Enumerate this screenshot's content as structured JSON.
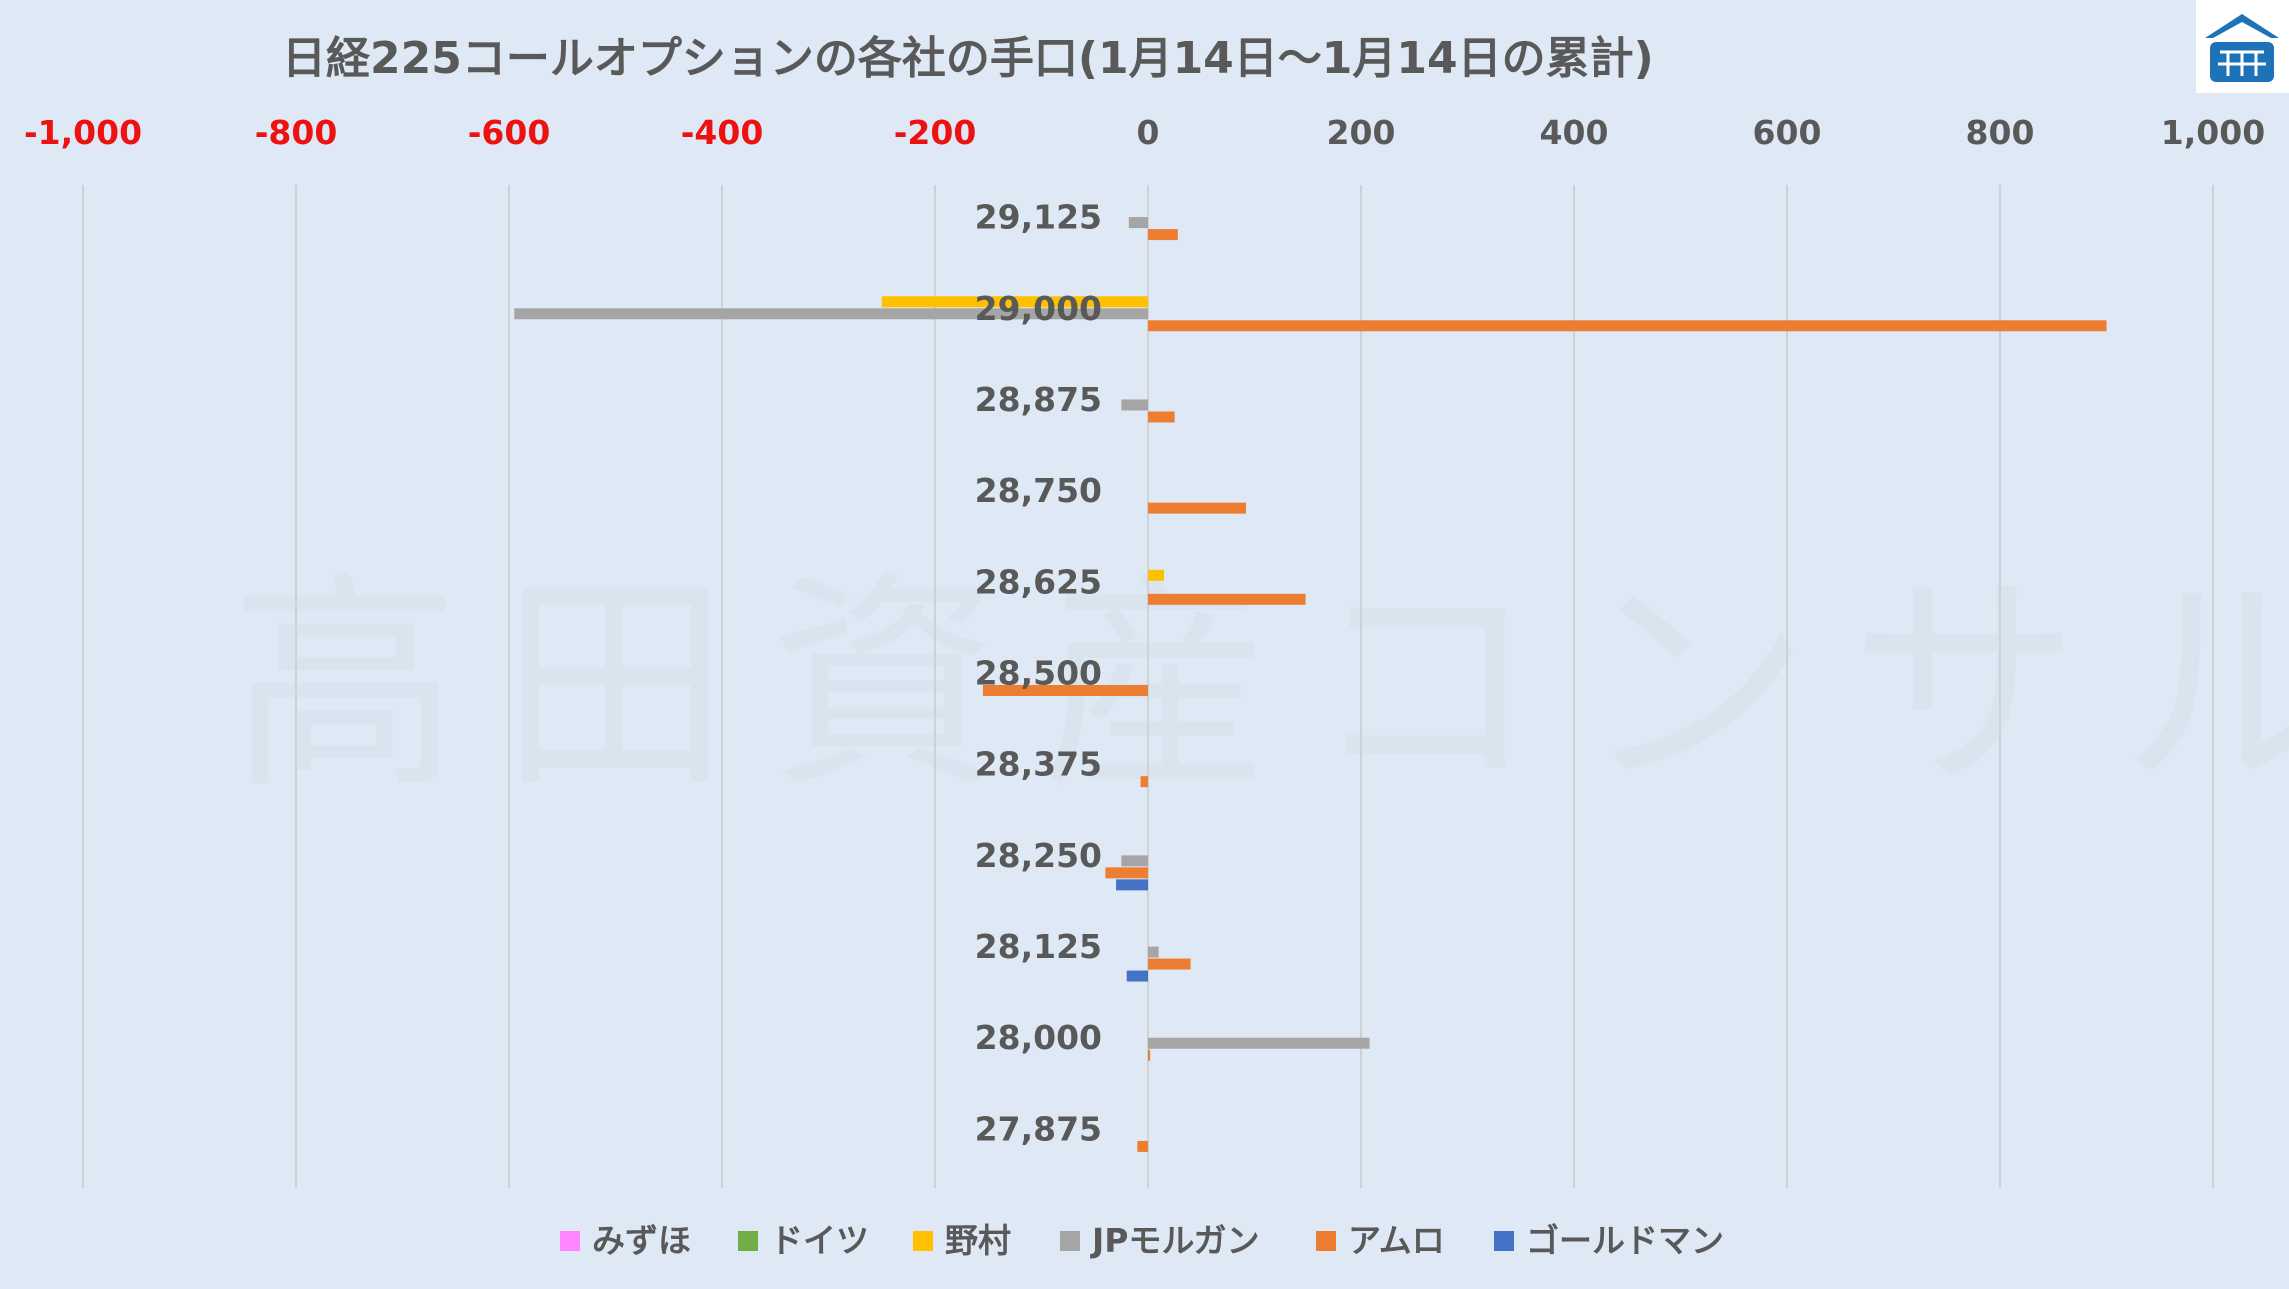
{
  "watermark": "高田資産コンサル",
  "logo": {
    "text": "高田資産コンサル"
  },
  "chart_data": {
    "type": "bar",
    "orientation": "horizontal",
    "title": "日経225コールオプションの各社の手口(1月14日～1月14日の累計)",
    "categories": [
      "29,125",
      "29,000",
      "28,875",
      "28,750",
      "28,625",
      "28,500",
      "28,375",
      "28,250",
      "28,125",
      "28,000",
      "27,875"
    ],
    "xlim": [
      -1000,
      1000
    ],
    "x_ticks": [
      "-1,000",
      "-800",
      "-600",
      "-400",
      "-200",
      "0",
      "200",
      "400",
      "600",
      "800",
      "1,000"
    ],
    "x_tick_values": [
      -1000,
      -800,
      -600,
      -400,
      -200,
      0,
      200,
      400,
      600,
      800,
      1000
    ],
    "negative_tick_color": "#ee1111",
    "grid": "vertical",
    "legend": "bottom",
    "series": [
      {
        "name": "みずほ",
        "color": "#ff85ff",
        "values": [
          0,
          0,
          0,
          0,
          0,
          0,
          0,
          0,
          0,
          0,
          0
        ]
      },
      {
        "name": "ドイツ",
        "color": "#70ad47",
        "values": [
          0,
          0,
          0,
          0,
          0,
          0,
          0,
          0,
          0,
          0,
          0
        ]
      },
      {
        "name": "野村",
        "color": "#ffc000",
        "values": [
          0,
          -250,
          0,
          0,
          15,
          0,
          0,
          0,
          0,
          0,
          0
        ]
      },
      {
        "name": "JPモルガン",
        "color": "#a5a5a5",
        "values": [
          -18,
          -595,
          -25,
          0,
          0,
          0,
          0,
          -25,
          10,
          208,
          0
        ]
      },
      {
        "name": "アムロ",
        "color": "#ed7d31",
        "values": [
          28,
          900,
          25,
          92,
          148,
          -155,
          -7,
          -40,
          40,
          2,
          -10
        ]
      },
      {
        "name": "ゴールドマン",
        "color": "#4472c4",
        "values": [
          0,
          0,
          0,
          0,
          0,
          0,
          0,
          -30,
          -20,
          0,
          0
        ]
      }
    ]
  }
}
